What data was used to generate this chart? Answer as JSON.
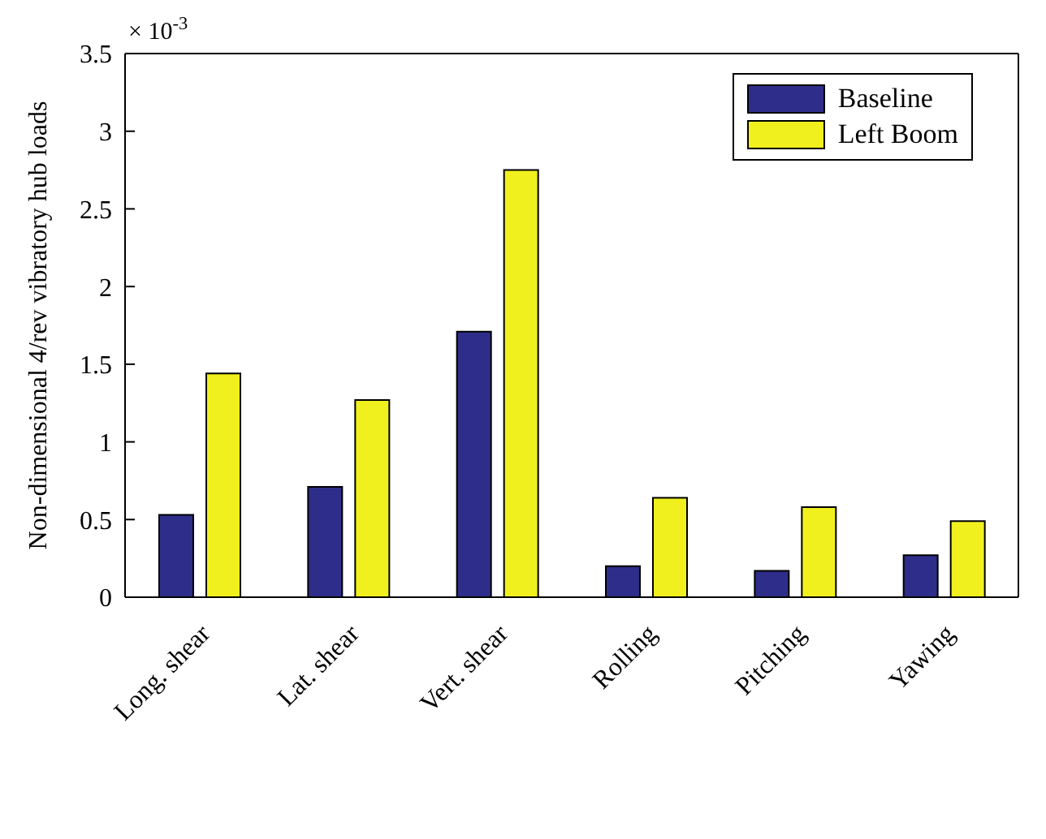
{
  "chart_data": {
    "type": "bar",
    "ylabel": "Non-dimensional 4/rev vibratory hub loads",
    "categories": [
      "Long. shear",
      "Lat. shear",
      "Vert. shear",
      "Rolling",
      "Pitching",
      "Yawing"
    ],
    "series": [
      {
        "name": "Baseline",
        "color": "#2e2e8a",
        "values": [
          0.53,
          0.71,
          1.71,
          0.2,
          0.17,
          0.27
        ]
      },
      {
        "name": "Left Boom",
        "color": "#f0f01e",
        "values": [
          1.44,
          1.27,
          2.75,
          0.64,
          0.58,
          0.49
        ]
      }
    ],
    "ylim": [
      0,
      3.5
    ],
    "yticks": [
      0,
      0.5,
      1,
      1.5,
      2,
      2.5,
      3,
      3.5
    ],
    "annotations": [
      "× 10$^{-3}$"
    ],
    "legend": "top right"
  }
}
